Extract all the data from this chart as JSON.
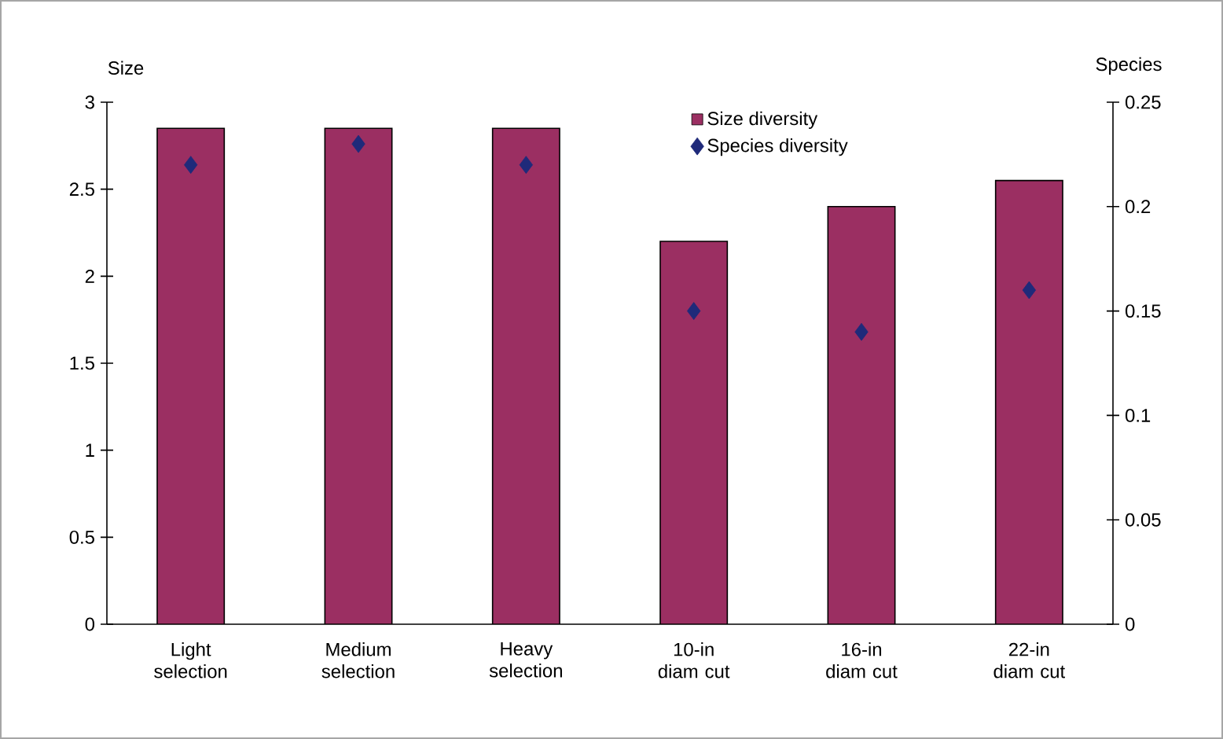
{
  "chart_data": {
    "type": "bar",
    "categories": [
      "Light selection",
      "Medium selection",
      "Heavy selection",
      "10-in diam cut",
      "16-in diam cut",
      "22-in diam cut"
    ],
    "ylabel": "Size",
    "y2label": "Species",
    "ylim": [
      0,
      3
    ],
    "yticks": [
      0,
      0.5,
      1,
      1.5,
      2,
      2.5,
      3
    ],
    "y2lim": [
      0,
      0.25
    ],
    "y2ticks": [
      0,
      0.05,
      0.1,
      0.15,
      0.2,
      0.25
    ],
    "series": [
      {
        "name": "Size diversity",
        "color": "#9b2f62",
        "values": [
          2.85,
          2.85,
          2.85,
          2.2,
          2.4,
          2.55
        ]
      },
      {
        "name": "Species diversity",
        "type": "scatter",
        "axis": "y2",
        "color": "#1f2a7a",
        "values": [
          0.22,
          0.23,
          0.22,
          0.15,
          0.14,
          0.16
        ]
      }
    ],
    "marker": "diamond",
    "legend": "top",
    "grid": false
  }
}
